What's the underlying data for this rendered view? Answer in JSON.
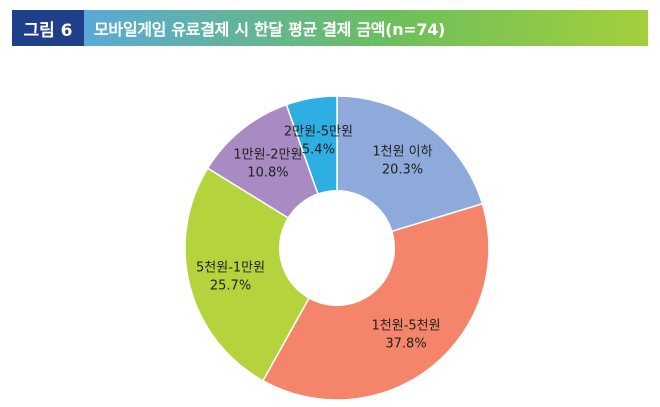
{
  "header": {
    "figure_label": "그림 6",
    "title": "모바일게임 유료결제 시 한달 평균 결제 금액(n=74)"
  },
  "chart_data": {
    "type": "pie",
    "title": "모바일게임 유료결제 시 한달 평균 결제 금액(n=74)",
    "donut": true,
    "legend": "none",
    "slices": [
      {
        "name": "1천원 이하",
        "value": 20.3,
        "label": "20.3%",
        "color": "#8eaadb"
      },
      {
        "name": "1천원-5천원",
        "value": 37.8,
        "label": "37.8%",
        "color": "#f4846a"
      },
      {
        "name": "5천원-1만원",
        "value": 25.7,
        "label": "25.7%",
        "color": "#b5d33d"
      },
      {
        "name": "1만원-2만원",
        "value": 10.8,
        "label": "10.8%",
        "color": "#a98bc3"
      },
      {
        "name": "2만원-5만원",
        "value": 5.4,
        "label": "5.4%",
        "color": "#2eaee2"
      }
    ]
  }
}
